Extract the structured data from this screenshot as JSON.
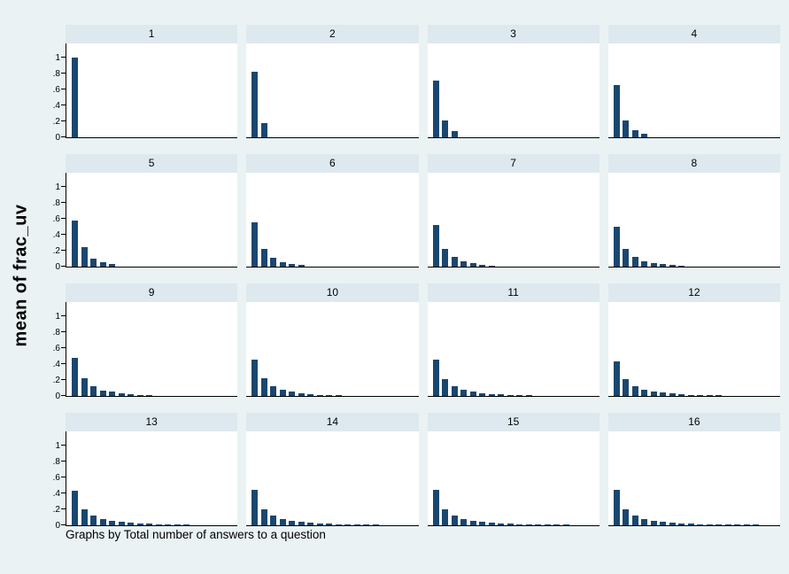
{
  "figure": {
    "ylabel": "mean of frac_uv",
    "note": "Graphs by Total number of answers to a question",
    "colors": {
      "background": "#eaf2f3",
      "panel_strip": "#dde9ee",
      "plot_background": "#ffffff",
      "bar": "#1a476f",
      "axis": "#000000"
    }
  },
  "chart_data": {
    "type": "bar",
    "layout": "4x4 small multiples (by-group bar charts), legend off, no gridlines, y axis labels on left column only",
    "title": "",
    "xlabel": "",
    "ylabel": "mean of frac_uv",
    "note": "Graphs by Total number of answers to a question",
    "ylim": [
      0,
      1
    ],
    "yticks": [
      0,
      0.2,
      0.4,
      0.6,
      0.8,
      1
    ],
    "ytick_labels": [
      "0",
      ".2",
      ".4",
      ".6",
      ".8",
      "1"
    ],
    "categories_meaning": "answer rank 1..N within each panel; panel label N = total number of answers to a question",
    "panels": [
      {
        "label": "1",
        "values": [
          1.0
        ]
      },
      {
        "label": "2",
        "values": [
          0.82,
          0.18
        ]
      },
      {
        "label": "3",
        "values": [
          0.71,
          0.21,
          0.08
        ]
      },
      {
        "label": "4",
        "values": [
          0.65,
          0.21,
          0.09,
          0.04
        ]
      },
      {
        "label": "5",
        "values": [
          0.58,
          0.24,
          0.1,
          0.05,
          0.03
        ]
      },
      {
        "label": "6",
        "values": [
          0.55,
          0.22,
          0.11,
          0.06,
          0.03,
          0.02
        ]
      },
      {
        "label": "7",
        "values": [
          0.52,
          0.22,
          0.12,
          0.07,
          0.04,
          0.02,
          0.01
        ]
      },
      {
        "label": "8",
        "values": [
          0.5,
          0.22,
          0.12,
          0.07,
          0.04,
          0.03,
          0.02,
          0.01
        ]
      },
      {
        "label": "9",
        "values": [
          0.48,
          0.22,
          0.12,
          0.07,
          0.05,
          0.03,
          0.02,
          0.01,
          0.01
        ]
      },
      {
        "label": "10",
        "values": [
          0.46,
          0.22,
          0.12,
          0.08,
          0.05,
          0.03,
          0.02,
          0.01,
          0.01,
          0.01
        ]
      },
      {
        "label": "11",
        "values": [
          0.46,
          0.21,
          0.12,
          0.08,
          0.05,
          0.03,
          0.02,
          0.02,
          0.01,
          0.01,
          0.01
        ]
      },
      {
        "label": "12",
        "values": [
          0.43,
          0.21,
          0.12,
          0.08,
          0.05,
          0.04,
          0.03,
          0.02,
          0.01,
          0.01,
          0.01,
          0.01
        ]
      },
      {
        "label": "13",
        "values": [
          0.43,
          0.2,
          0.12,
          0.08,
          0.05,
          0.04,
          0.03,
          0.02,
          0.02,
          0.01,
          0.01,
          0.01,
          0.01
        ]
      },
      {
        "label": "14",
        "values": [
          0.44,
          0.2,
          0.12,
          0.08,
          0.05,
          0.04,
          0.03,
          0.02,
          0.02,
          0.01,
          0.01,
          0.01,
          0.01,
          0.01
        ]
      },
      {
        "label": "15",
        "values": [
          0.44,
          0.2,
          0.12,
          0.08,
          0.06,
          0.04,
          0.03,
          0.02,
          0.02,
          0.01,
          0.01,
          0.01,
          0.01,
          0.01,
          0.01
        ]
      },
      {
        "label": "16",
        "values": [
          0.44,
          0.2,
          0.12,
          0.08,
          0.05,
          0.04,
          0.03,
          0.02,
          0.02,
          0.01,
          0.01,
          0.01,
          0.01,
          0.01,
          0.01,
          0.01
        ]
      }
    ]
  }
}
